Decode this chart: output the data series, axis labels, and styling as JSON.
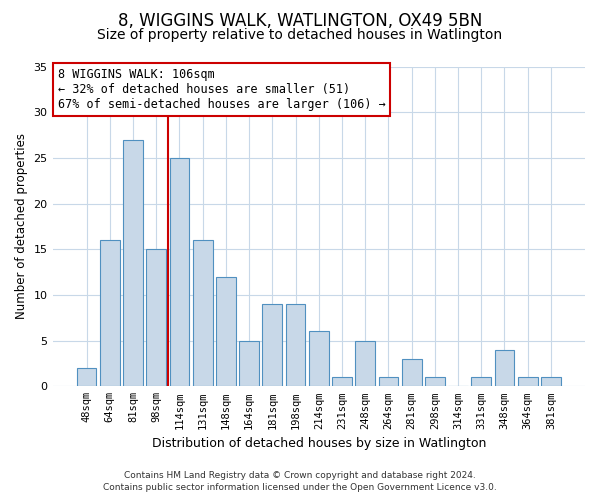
{
  "title": "8, WIGGINS WALK, WATLINGTON, OX49 5BN",
  "subtitle": "Size of property relative to detached houses in Watlington",
  "xlabel": "Distribution of detached houses by size in Watlington",
  "ylabel": "Number of detached properties",
  "footnote1": "Contains HM Land Registry data © Crown copyright and database right 2024.",
  "footnote2": "Contains public sector information licensed under the Open Government Licence v3.0.",
  "bar_labels": [
    "48sqm",
    "64sqm",
    "81sqm",
    "98sqm",
    "114sqm",
    "131sqm",
    "148sqm",
    "164sqm",
    "181sqm",
    "198sqm",
    "214sqm",
    "231sqm",
    "248sqm",
    "264sqm",
    "281sqm",
    "298sqm",
    "314sqm",
    "331sqm",
    "348sqm",
    "364sqm",
    "381sqm"
  ],
  "bar_values": [
    2,
    16,
    27,
    15,
    25,
    16,
    12,
    5,
    9,
    9,
    6,
    1,
    5,
    1,
    3,
    1,
    0,
    1,
    4,
    1,
    1
  ],
  "bar_color": "#c8d8e8",
  "bar_edge_color": "#5090c0",
  "highlight_line_color": "#cc0000",
  "annotation_line1": "8 WIGGINS WALK: 106sqm",
  "annotation_line2": "← 32% of detached houses are smaller (51)",
  "annotation_line3": "67% of semi-detached houses are larger (106) →",
  "annotation_box_color": "#ffffff",
  "annotation_box_edge": "#cc0000",
  "ylim": [
    0,
    35
  ],
  "yticks": [
    0,
    5,
    10,
    15,
    20,
    25,
    30,
    35
  ],
  "bg_color": "#ffffff",
  "grid_color": "#c8d8e8",
  "title_fontsize": 12,
  "subtitle_fontsize": 10,
  "footnote_fontsize": 6.5
}
